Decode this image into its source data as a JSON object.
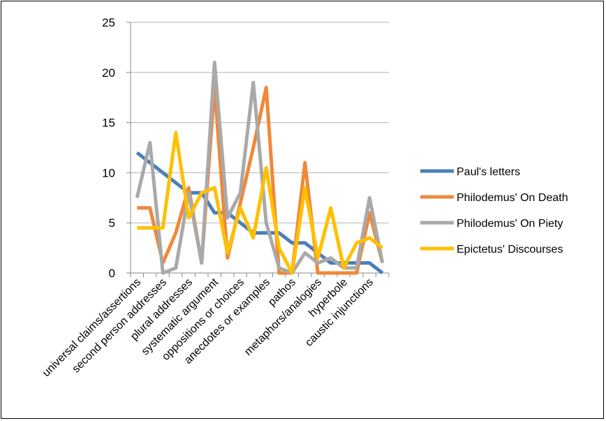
{
  "chart_data": {
    "type": "line",
    "ylim": [
      0,
      25
    ],
    "yticks": [
      "0",
      "5",
      "10",
      "15",
      "20",
      "25"
    ],
    "grid": true,
    "legend_position": "right",
    "categories": [
      "universal claims/assertions",
      "",
      "second person addresses",
      "",
      "plural addresses",
      "",
      "systematic argument",
      "",
      "oppositions or choices",
      "",
      "anecdotes or examples",
      "",
      "pathos",
      "",
      "metaphors/analogies",
      "",
      "hyperbole",
      "",
      "caustic injunctions",
      ""
    ],
    "series": [
      {
        "name": "Paul's letters",
        "color": "#4a7ebb",
        "values": [
          12,
          11,
          10,
          9,
          8,
          8,
          6,
          6,
          5,
          4,
          4,
          4,
          3,
          3,
          2,
          1,
          1,
          1,
          1,
          0
        ]
      },
      {
        "name": "Philodemus' On Death",
        "color": "#f0883a",
        "values": [
          6.5,
          6.5,
          1,
          4,
          8.5,
          1,
          18.5,
          1.5,
          7,
          12.5,
          18.5,
          0,
          0,
          11,
          0,
          0,
          0,
          0,
          6,
          1
        ]
      },
      {
        "name": "Philodemus' On Piety",
        "color": "#a9a9a9",
        "values": [
          7.5,
          13,
          0,
          0.5,
          8,
          1,
          21,
          5.5,
          8,
          19,
          5,
          0.5,
          0,
          2,
          1,
          1.5,
          0.5,
          0.5,
          7.5,
          1
        ]
      },
      {
        "name": "Epictetus' Discourses",
        "color": "#ffc000",
        "values": [
          4.5,
          4.5,
          4.5,
          14,
          5.5,
          8,
          8.5,
          2,
          6.5,
          3.5,
          10.5,
          2.5,
          0,
          8.5,
          1.5,
          6.5,
          0.5,
          3,
          3.5,
          2.5
        ]
      }
    ]
  }
}
